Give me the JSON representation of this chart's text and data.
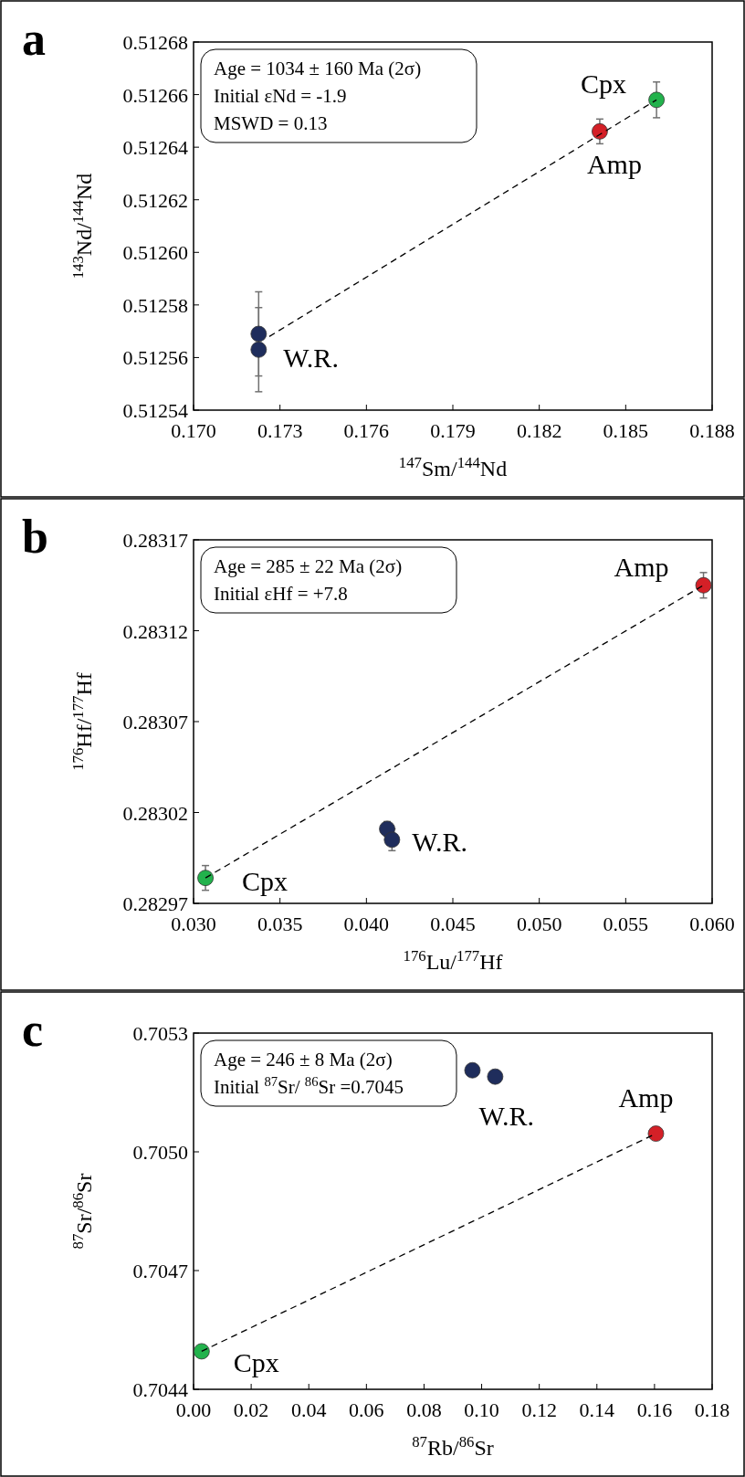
{
  "chart_data": [
    {
      "type": "scatter",
      "title": "a",
      "xlabel": "$^{147}$Sm/$^{144}$Nd",
      "ylabel": "$^{143}$Nd/$^{144}$Nd",
      "annotations": [
        "Age = 1034 ± 160 Ma (2σ)",
        "Initial εNd = -1.9",
        "MSWD = 0.13"
      ],
      "xlim": [
        0.17,
        0.188
      ],
      "xticks": [
        {
          "value": 0.17,
          "label": "0.170"
        },
        0.173,
        0.176,
        0.179,
        0.182,
        0.185,
        0.188
      ],
      "ylim": [
        0.51254,
        0.51268
      ],
      "yticks": [
        0.51254,
        0.51256,
        0.51258,
        {
          "value": 0.5126,
          "label": "0.51260"
        },
        0.51262,
        0.51264,
        0.51266,
        0.51268
      ],
      "marker": "circle",
      "grid": false,
      "legend": false,
      "series": [
        {
          "name": "W.R.",
          "color": "#1f2d5c",
          "x": [
            0.17226,
            0.17226
          ],
          "values": [
            0.512569,
            0.512563
          ],
          "errors": [
            1.6e-05,
            1.6e-05
          ]
        },
        {
          "name": "Amp",
          "color": "#d42027",
          "x": [
            0.1841
          ],
          "values": [
            0.512646
          ],
          "errors": [
            4.7e-06
          ]
        },
        {
          "name": "Cpx",
          "color": "#22b24c",
          "x": [
            0.18607
          ],
          "values": [
            0.512658
          ],
          "errors": [
            6.8e-06
          ]
        },
        {
          "type": "line",
          "color": "#000000",
          "line_style": "dashed",
          "marker": "none",
          "x": [
            0.17263,
            0.18607
          ],
          "values": [
            0.512568,
            0.512658
          ]
        }
      ]
    },
    {
      "type": "scatter",
      "title": "b",
      "xlabel": "$^{176}$Lu/$^{177}$Hf",
      "ylabel": "$^{176}$Hf/$^{177}$Hf",
      "annotations": [
        "Age = 285 ± 22 Ma (2σ)",
        "Initial εHf = +7.8"
      ],
      "xlim": [
        0.03,
        0.06
      ],
      "xticks": [
        {
          "value": 0.03,
          "label": "0.030"
        },
        0.035,
        {
          "value": 0.04,
          "label": "0.040"
        },
        0.045,
        {
          "value": 0.05,
          "label": "0.050"
        },
        0.055,
        {
          "value": 0.06,
          "label": "0.060"
        }
      ],
      "ylim": [
        0.28297,
        0.28317
      ],
      "yticks": [
        0.28297,
        0.28302,
        0.28307,
        0.28312,
        0.28317
      ],
      "marker": "circle",
      "grid": false,
      "legend": false,
      "series": [
        {
          "name": "W.R.",
          "color": "#1f2d5c",
          "x": [
            0.0412,
            0.04148
          ],
          "values": [
            0.283011,
            0.283005
          ],
          "errors": [
            4e-06,
            6e-06
          ]
        },
        {
          "name": "Amp",
          "color": "#d42027",
          "x": [
            0.0595
          ],
          "values": [
            0.283145
          ],
          "errors": [
            7e-06
          ]
        },
        {
          "name": "Cpx",
          "color": "#22b24c",
          "x": [
            0.03069
          ],
          "values": [
            0.282984
          ],
          "errors": [
            6.8e-06
          ]
        },
        {
          "type": "line",
          "color": "#000000",
          "line_style": "dashed",
          "marker": "none",
          "x": [
            0.03069,
            0.0595
          ],
          "values": [
            0.282984,
            0.283145
          ]
        }
      ]
    },
    {
      "type": "scatter",
      "title": "c",
      "xlabel": "$^{87}$Rb/$^{86}$Sr",
      "ylabel": "$^{87}$Sr/$^{86}$Sr",
      "annotations": [
        "Age = 246 ± 8 Ma (2σ)",
        "Initial  $^{87}$Sr/ $^{86}$Sr =0.7045"
      ],
      "xlim": [
        0.0,
        0.18
      ],
      "xticks": [
        {
          "value": 0,
          "label": "0.00"
        },
        {
          "value": 0.02,
          "label": "0.02"
        },
        {
          "value": 0.04,
          "label": "0.04"
        },
        {
          "value": 0.06,
          "label": "0.06"
        },
        {
          "value": 0.08,
          "label": "0.08"
        },
        {
          "value": 0.1,
          "label": "0.10"
        },
        {
          "value": 0.12,
          "label": "0.12"
        },
        {
          "value": 0.14,
          "label": "0.14"
        },
        {
          "value": 0.16,
          "label": "0.16"
        },
        {
          "value": 0.18,
          "label": "0.18"
        }
      ],
      "ylim": [
        0.7044,
        0.7053
      ],
      "yticks": [
        0.7044,
        0.7047,
        {
          "value": 0.705,
          "label": "0.7050"
        },
        0.7053
      ],
      "marker": "circle",
      "grid": false,
      "legend": false,
      "series": [
        {
          "name": "W.R.",
          "color": "#1f2d5c",
          "x": [
            0.0968,
            0.1047
          ],
          "values": [
            0.705206,
            0.70519
          ]
        },
        {
          "name": "Amp",
          "color": "#d42027",
          "x": [
            0.1605
          ],
          "values": [
            0.705046
          ]
        },
        {
          "name": "Cpx",
          "color": "#22b24c",
          "x": [
            0.0028
          ],
          "values": [
            0.704496
          ]
        },
        {
          "type": "line",
          "color": "#000000",
          "line_style": "dashed",
          "marker": "none",
          "x": [
            0.0028,
            0.1605
          ],
          "values": [
            0.704496,
            0.705046
          ]
        }
      ]
    }
  ]
}
